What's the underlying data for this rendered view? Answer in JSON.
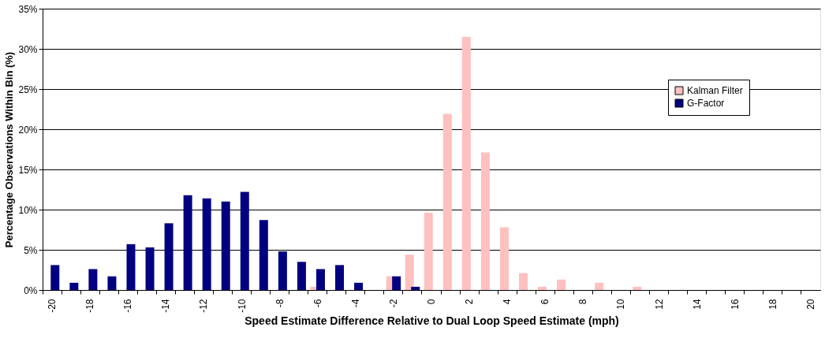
{
  "chart_data": {
    "type": "bar",
    "xlabel": "Speed Estimate Difference Relative to Dual Loop Speed Estimate (mph)",
    "ylabel": "Percentage Observations Within Bin (%)",
    "categories": [
      "-20",
      null,
      "-18",
      null,
      "-16",
      null,
      "-14",
      null,
      "-12",
      null,
      "-10",
      null,
      "-8",
      null,
      "-6",
      null,
      "-4",
      null,
      "-2",
      null,
      "0",
      null,
      "2",
      null,
      "4",
      null,
      "6",
      null,
      "8",
      null,
      "10",
      null,
      "12",
      null,
      "14",
      null,
      "16",
      null,
      "18",
      null,
      "20"
    ],
    "series": [
      {
        "name": "Kalman Filter",
        "color": "#ffc0c0",
        "values": [
          0,
          0,
          0,
          0,
          0,
          0,
          0,
          0,
          0,
          0,
          0,
          0,
          0,
          0,
          0.4,
          0,
          0,
          0,
          1.7,
          4.4,
          9.6,
          21.9,
          31.5,
          17.1,
          7.8,
          2.1,
          0.4,
          1.3,
          0,
          0.9,
          0,
          0.4,
          0,
          0,
          0,
          0,
          0,
          0,
          0,
          0,
          0
        ]
      },
      {
        "name": "G-Factor",
        "color": "#000080",
        "values": [
          3.1,
          0.9,
          2.6,
          1.7,
          5.7,
          5.3,
          8.3,
          11.8,
          11.4,
          11.0,
          12.2,
          8.7,
          4.8,
          3.5,
          2.6,
          3.1,
          0.9,
          0,
          1.7,
          0.4,
          0,
          0,
          0,
          0,
          0,
          0,
          0,
          0,
          0,
          0,
          0,
          0,
          0,
          0,
          0,
          0,
          0,
          0,
          0,
          0,
          0
        ]
      }
    ],
    "ylim": [
      0,
      35
    ],
    "yticks": [
      {
        "value": 0,
        "label": "0%"
      },
      {
        "value": 5,
        "label": "5%"
      },
      {
        "value": 10,
        "label": "10%"
      },
      {
        "value": 15,
        "label": "15%"
      },
      {
        "value": 20,
        "label": "20%"
      },
      {
        "value": 25,
        "label": "25%"
      },
      {
        "value": 30,
        "label": "30%"
      },
      {
        "value": 35,
        "label": "35%"
      }
    ],
    "grid": "y",
    "legend": "top right"
  }
}
